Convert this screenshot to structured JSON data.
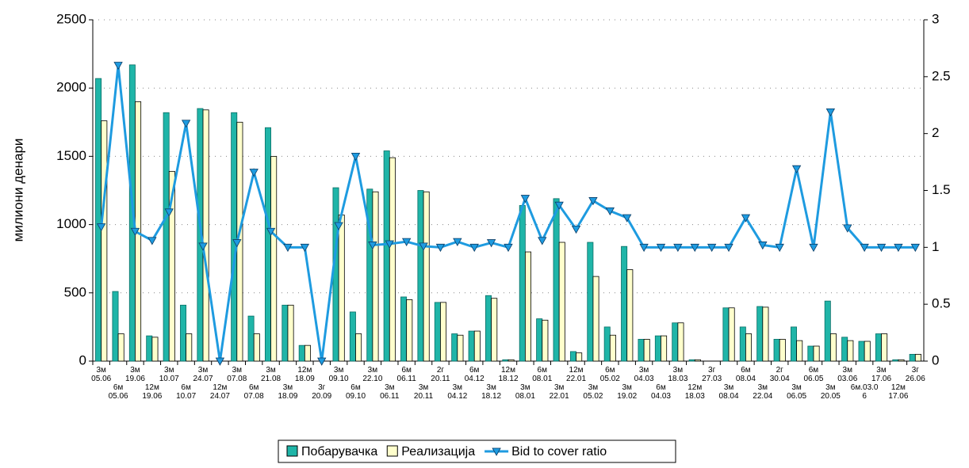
{
  "chart_data": {
    "type": "bar",
    "y_label": "милиони денари",
    "categories": [
      "3м 05.06",
      "6м 05.06",
      "3м 19.06",
      "12м 19.06",
      "3м 10.07",
      "6м 10.07",
      "3м 24.07",
      "12м 24.07",
      "3м 07.08",
      "6м 07.08",
      "3м 21.08",
      "3м 18.09",
      "12м 18.09",
      "3г 20.09",
      "3м 09.10",
      "6м 09.10",
      "3м 22.10",
      "3м 06.11",
      "6м 06.11",
      "3м 20.11",
      "2г 20.11",
      "3м 04.12",
      "6м 04.12",
      "3м 18.12",
      "12м 18.12",
      "3м 08.01",
      "6м 08.01",
      "3м 22.01",
      "12м 22.01",
      "3м 05.02",
      "6м 05.02",
      "3м 19.02",
      "3м 04.03",
      "6м 04.03",
      "3м 18.03",
      "12м 18.03",
      "3г 27.03",
      "3м 08.04",
      "6м 08.04",
      "3м 22.04",
      "2г 30.04",
      "3м 06.05",
      "6м 06.05",
      "3м 20.05",
      "3м 03.06",
      "6м.03.0 6",
      "3м 17.06",
      "12м 17.06",
      "3г 26.06"
    ],
    "series": [
      {
        "name": "Побарувачка",
        "type": "bar",
        "color": "#1fb5a8",
        "values": [
          2070,
          510,
          2170,
          185,
          1820,
          410,
          1850,
          0,
          1820,
          330,
          1710,
          410,
          115,
          0,
          1270,
          360,
          1260,
          1540,
          470,
          1250,
          430,
          200,
          220,
          480,
          10,
          1140,
          310,
          1190,
          70,
          870,
          250,
          840,
          160,
          185,
          280,
          10,
          0,
          390,
          250,
          400,
          160,
          250,
          110,
          440,
          175,
          145,
          200,
          10,
          50
        ]
      },
      {
        "name": "Реализација",
        "type": "bar",
        "color": "#ffffcc",
        "values": [
          1760,
          200,
          1900,
          175,
          1390,
          200,
          1840,
          0,
          1750,
          200,
          1500,
          410,
          115,
          0,
          1070,
          200,
          1240,
          1490,
          450,
          1240,
          430,
          190,
          220,
          460,
          10,
          800,
          300,
          870,
          60,
          620,
          190,
          670,
          160,
          185,
          280,
          10,
          0,
          390,
          200,
          395,
          160,
          150,
          110,
          200,
          150,
          145,
          200,
          10,
          50
        ]
      },
      {
        "name": "Bid to cover ratio",
        "type": "line",
        "axis": "y2",
        "color": "#1e9be0",
        "values": [
          1.18,
          2.6,
          1.14,
          1.06,
          1.31,
          2.09,
          1.01,
          0,
          1.04,
          1.66,
          1.14,
          1.0,
          1.0,
          0,
          1.19,
          1.8,
          1.02,
          1.03,
          1.05,
          1.01,
          1.0,
          1.05,
          1.0,
          1.04,
          1.0,
          1.43,
          1.06,
          1.37,
          1.16,
          1.41,
          1.32,
          1.26,
          1.0,
          1.0,
          1.0,
          1.0,
          1.0,
          1.0,
          1.26,
          1.02,
          1.0,
          1.69,
          1.0,
          2.19,
          1.17,
          1.0,
          1.0,
          1.0,
          1.0
        ]
      }
    ],
    "ylim": [
      0,
      2500
    ],
    "yticks": [
      0,
      500,
      1000,
      1500,
      2000,
      2500
    ],
    "y2lim": [
      0,
      3
    ],
    "y2ticks": [
      0,
      0.5,
      1,
      1.5,
      2,
      2.5,
      3
    ],
    "grid": true,
    "legend": "bottom"
  }
}
